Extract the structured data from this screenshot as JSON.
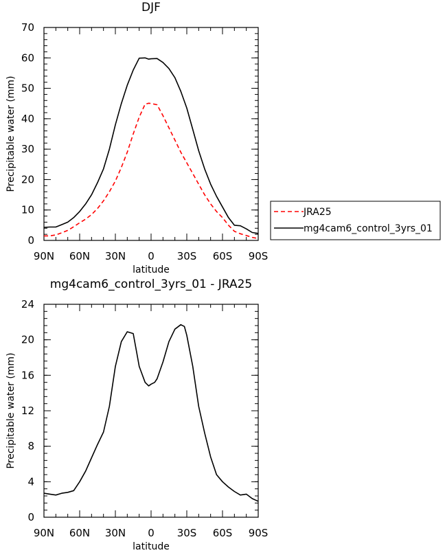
{
  "chart_data": [
    {
      "type": "line",
      "title": "DJF",
      "xlabel": "latitude",
      "ylabel": "Precipitable water (mm)",
      "ylim": [
        0,
        70
      ],
      "yticks": [
        0,
        10,
        20,
        30,
        40,
        50,
        60,
        70
      ],
      "xlim": [
        90,
        -90
      ],
      "xticks": [
        {
          "value": 90,
          "label": "90N"
        },
        {
          "value": 60,
          "label": "60N"
        },
        {
          "value": 30,
          "label": "30N"
        },
        {
          "value": 0,
          "label": "0"
        },
        {
          "value": -30,
          "label": "30S"
        },
        {
          "value": -60,
          "label": "60S"
        },
        {
          "value": -90,
          "label": "90S"
        }
      ],
      "grid": false,
      "legend": "right",
      "series": [
        {
          "name": "JRA25",
          "color": "#ff0000",
          "dash": true,
          "x": [
            90,
            85,
            80,
            75,
            70,
            65,
            60,
            55,
            50,
            45,
            40,
            35,
            30,
            25,
            20,
            15,
            10,
            5,
            2,
            0,
            -5,
            -10,
            -15,
            -20,
            -25,
            -30,
            -35,
            -40,
            -45,
            -50,
            -55,
            -60,
            -65,
            -70,
            -75,
            -80,
            -85,
            -90
          ],
          "values": [
            1.5,
            1.5,
            1.8,
            2.5,
            3.3,
            4.5,
            5.8,
            7.0,
            8.5,
            10.5,
            13.0,
            16.0,
            19.5,
            24.0,
            29.0,
            35.0,
            40.5,
            44.8,
            45.1,
            45.0,
            44.6,
            41.0,
            37.0,
            33.0,
            29.0,
            25.5,
            22.0,
            18.5,
            15.0,
            12.0,
            9.5,
            7.5,
            5.0,
            3.0,
            2.2,
            1.6,
            1.0,
            0.6
          ]
        },
        {
          "name": "mg4cam6_control_3yrs_01",
          "color": "#000000",
          "dash": false,
          "x": [
            90,
            85,
            80,
            75,
            70,
            65,
            60,
            55,
            50,
            45,
            40,
            35,
            30,
            25,
            20,
            15,
            10,
            5,
            2,
            0,
            -5,
            -10,
            -15,
            -20,
            -25,
            -30,
            -35,
            -40,
            -45,
            -50,
            -55,
            -60,
            -65,
            -70,
            -75,
            -80,
            -85,
            -90
          ],
          "values": [
            4.3,
            4.4,
            4.4,
            5.2,
            6.0,
            7.5,
            9.5,
            12.0,
            15.0,
            19.0,
            23.5,
            30.0,
            38.0,
            45.0,
            51.0,
            56.0,
            59.9,
            60.0,
            59.6,
            59.7,
            59.8,
            58.5,
            56.5,
            53.5,
            49.0,
            43.5,
            36.5,
            29.5,
            23.5,
            18.5,
            14.5,
            11.0,
            7.5,
            5.0,
            4.8,
            3.8,
            2.6,
            2.3
          ]
        }
      ]
    },
    {
      "type": "line",
      "title": "mg4cam6_control_3yrs_01 - JRA25",
      "xlabel": "latitude",
      "ylabel": "Precipitable water (mm)",
      "ylim": [
        0,
        24
      ],
      "yticks": [
        0,
        4,
        8,
        12,
        16,
        20,
        24
      ],
      "xlim": [
        90,
        -90
      ],
      "xticks": [
        {
          "value": 90,
          "label": "90N"
        },
        {
          "value": 60,
          "label": "60N"
        },
        {
          "value": 30,
          "label": "30N"
        },
        {
          "value": 0,
          "label": "0"
        },
        {
          "value": -30,
          "label": "30S"
        },
        {
          "value": -60,
          "label": "60S"
        },
        {
          "value": -90,
          "label": "90S"
        }
      ],
      "grid": false,
      "series": [
        {
          "color": "#000000",
          "dash": false,
          "x": [
            90,
            85,
            80,
            75,
            70,
            65,
            60,
            55,
            50,
            45,
            40,
            35,
            30,
            25,
            20,
            15,
            12,
            10,
            5,
            2,
            0,
            -3,
            -5,
            -10,
            -15,
            -20,
            -25,
            -28,
            -30,
            -35,
            -40,
            -45,
            -50,
            -55,
            -60,
            -65,
            -70,
            -75,
            -80,
            -85,
            -90
          ],
          "values": [
            2.7,
            2.6,
            2.5,
            2.7,
            2.8,
            3.0,
            4.0,
            5.2,
            6.7,
            8.2,
            9.6,
            12.5,
            17.0,
            19.8,
            20.9,
            20.7,
            18.5,
            17.0,
            15.2,
            14.8,
            15.0,
            15.2,
            15.6,
            17.5,
            19.8,
            21.2,
            21.7,
            21.5,
            20.5,
            17.0,
            12.5,
            9.5,
            6.8,
            4.8,
            4.0,
            3.4,
            2.9,
            2.5,
            2.6,
            2.1,
            1.8
          ]
        }
      ]
    }
  ]
}
